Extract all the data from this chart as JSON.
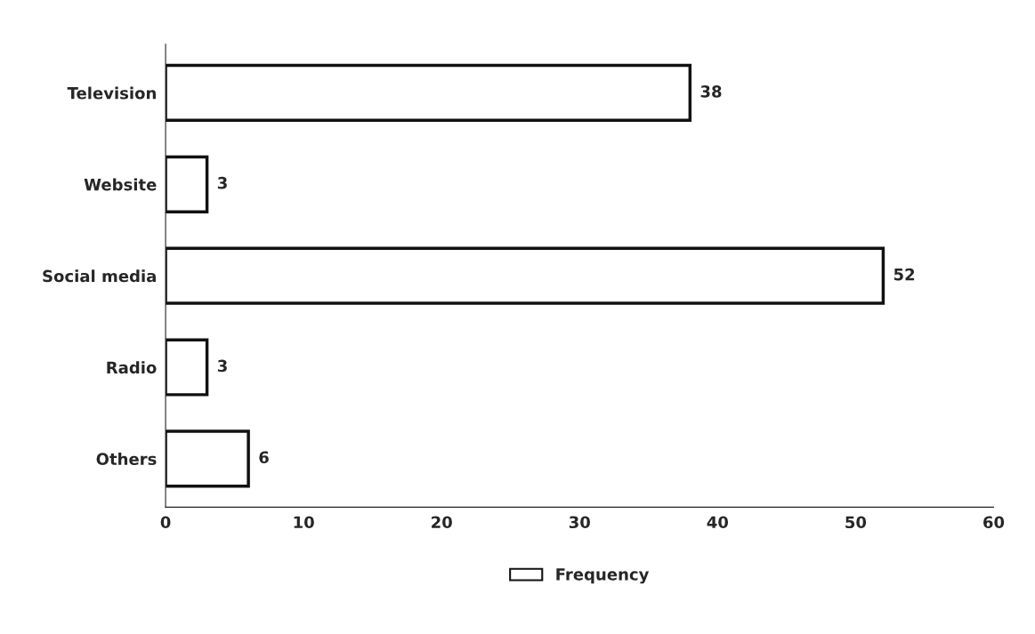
{
  "chart_data": {
    "type": "bar",
    "orientation": "horizontal",
    "categories": [
      "Television",
      "Website",
      "Social media",
      "Radio",
      "Others"
    ],
    "series": [
      {
        "name": "Frequency",
        "color": "#ffffff",
        "values": [
          38,
          3,
          52,
          3,
          6
        ]
      }
    ],
    "xlim": [
      0,
      60
    ],
    "xticks": [
      0,
      10,
      20,
      30,
      40,
      50,
      60
    ],
    "data_labels": true,
    "legend": "bottom",
    "grid": false
  }
}
